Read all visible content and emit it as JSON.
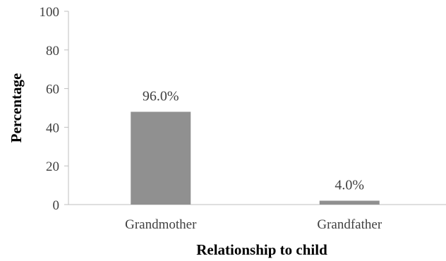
{
  "chart_data": {
    "type": "bar",
    "title": "",
    "xlabel": "Relationship to child",
    "ylabel": "Percentage",
    "ylim": [
      0,
      100
    ],
    "yticks": [
      0,
      20,
      40,
      60,
      80,
      100
    ],
    "grid": false,
    "legend": "none",
    "categories": [
      "Grandmother",
      "Grandfather"
    ],
    "values": [
      48,
      2
    ],
    "data_labels": [
      "96.0%",
      "4.0%"
    ],
    "bar_color": "#909090",
    "axis_color": "#bfbfbf"
  }
}
